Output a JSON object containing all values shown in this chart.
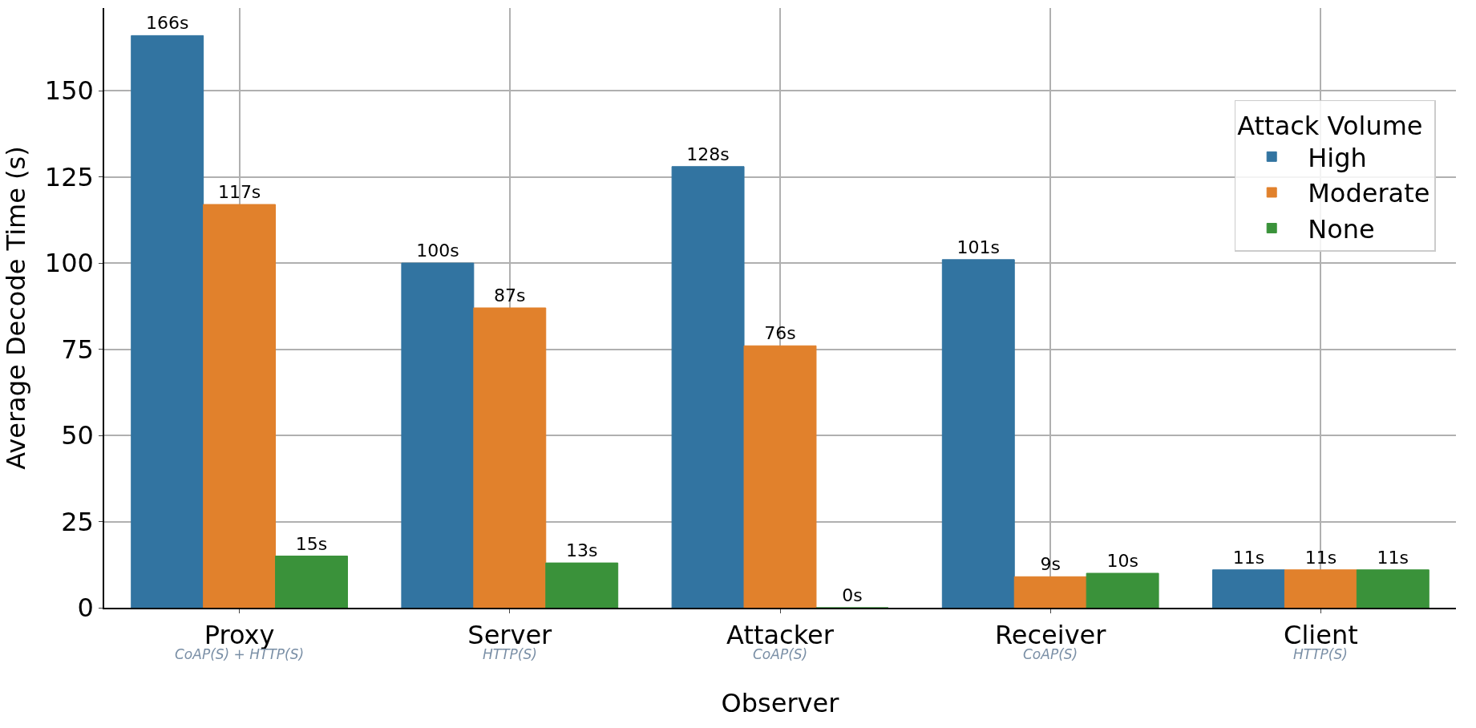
{
  "chart_data": {
    "type": "bar",
    "xlabel": "Observer",
    "ylabel": "Average Decode Time (s)",
    "legend_title": "Attack Volume",
    "categories": [
      "Proxy",
      "Server",
      "Attacker",
      "Receiver",
      "Client"
    ],
    "series": [
      {
        "name": "High",
        "color": "#3274a1",
        "values": [
          166,
          100,
          128,
          101,
          11
        ],
        "value_labels": [
          "166s",
          "100s",
          "128s",
          "101s",
          "11s"
        ]
      },
      {
        "name": "Moderate",
        "color": "#e1812c",
        "values": [
          117,
          87,
          76,
          9,
          11
        ],
        "value_labels": [
          "117s",
          "87s",
          "76s",
          "9s",
          "11s"
        ]
      },
      {
        "name": "None",
        "color": "#3a923a",
        "values": [
          15,
          13,
          0,
          10,
          11
        ],
        "value_labels": [
          "15s",
          "13s",
          "0s",
          "10s",
          "11s"
        ]
      }
    ],
    "ylim": [
      0,
      174
    ],
    "yticks": [
      0,
      25,
      50,
      75,
      100,
      125,
      150
    ],
    "grid": true,
    "legend": "right",
    "annotations": [
      "CoAP(S) + HTTP(S)",
      "HTTP(S)",
      "CoAP(S)",
      "CoAP(S)",
      "HTTP(S)"
    ]
  }
}
